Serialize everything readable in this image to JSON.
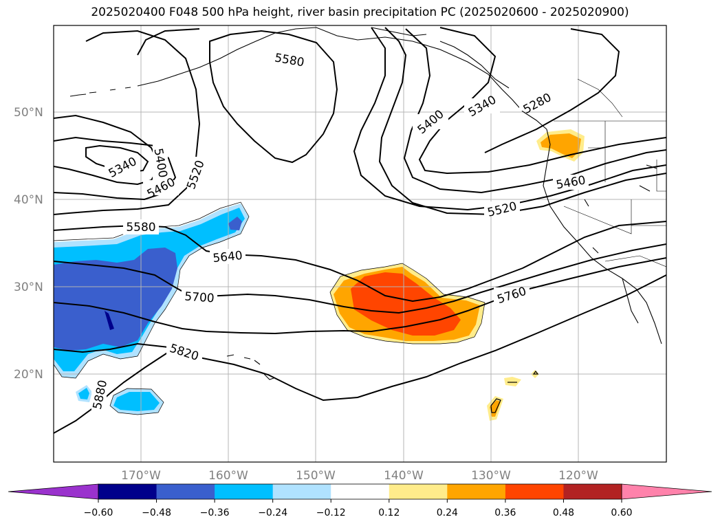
{
  "title": "2025020400 F048 500 hPa height, river basin precipitation PC (2025020600 - 2025020900)",
  "lat_labels": [
    "50°N",
    "40°N",
    "30°N",
    "20°N"
  ],
  "lon_labels": [
    "170°W",
    "160°W",
    "150°W",
    "140°W",
    "130°W",
    "120°W"
  ],
  "contour_labels": [
    "5580",
    "5340",
    "5400",
    "5460",
    "5520",
    "5580",
    "5640",
    "5700",
    "5820",
    "5880",
    "5400",
    "5340",
    "5280",
    "5460",
    "5520",
    "5760"
  ],
  "colorbar": {
    "ticks": [
      "−0.60",
      "−0.48",
      "−0.36",
      "−0.24",
      "−0.12",
      "0.12",
      "0.24",
      "0.36",
      "0.48",
      "0.60"
    ],
    "colors": [
      "#9a32cd",
      "#00008b",
      "#3a5fcd",
      "#00bfff",
      "#b0e2ff",
      "#ffffff",
      "#ffec8b",
      "#ffa500",
      "#ff4500",
      "#b22222",
      "#ff82ab",
      "#ff82ab"
    ]
  }
}
